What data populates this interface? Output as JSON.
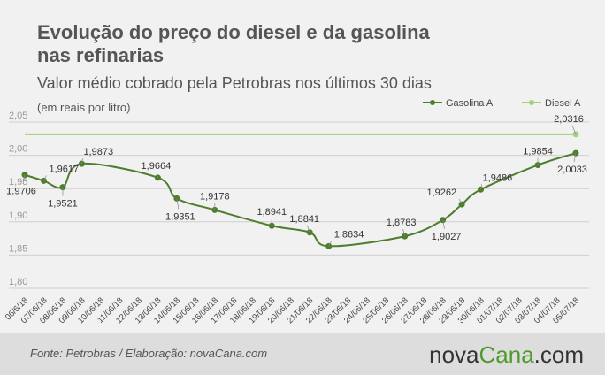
{
  "chart_data": {
    "type": "line",
    "title": [
      "Evolução do preço do diesel e da gasolina",
      "nas refinarias"
    ],
    "subtitle": "Valor médio cobrado pela Petrobras nos últimos 30 dias",
    "unit_note": "(em reais por litro)",
    "categories": [
      "06/6/18",
      "07/06/18",
      "08/06/18",
      "09/06/18",
      "10/06/18",
      "11/06/18",
      "12/06/18",
      "13/06/18",
      "14/06/18",
      "15/06/18",
      "16/06/18",
      "17/06/18",
      "18/06/18",
      "19/06/18",
      "20/06/18",
      "21/06/18",
      "22/06/18",
      "23/06/18",
      "24/06/18",
      "25/06/18",
      "26/06/18",
      "27/06/18",
      "28/06/18",
      "29/06/18",
      "30/06/18",
      "01/07/18",
      "02/07/18",
      "03/07/18",
      "04/07/18",
      "05/07/18"
    ],
    "series": [
      {
        "name": "Gasolina A",
        "color": "#4e7d2c",
        "x": [
          "06/6/18",
          "07/06/18",
          "08/06/18",
          "09/06/18",
          "13/06/18",
          "14/06/18",
          "16/06/18",
          "19/06/18",
          "21/06/18",
          "22/06/18",
          "26/06/18",
          "28/06/18",
          "29/06/18",
          "30/06/18",
          "03/07/18",
          "05/07/18"
        ],
        "values": [
          1.9706,
          1.9617,
          1.9521,
          1.9873,
          1.9664,
          1.9351,
          1.9178,
          1.8941,
          1.8841,
          1.8634,
          1.8783,
          1.9027,
          1.9262,
          1.9486,
          1.9854,
          2.0033
        ],
        "value_labels": [
          "1,9706",
          "1,9617",
          "1,9521",
          "1,9873",
          "1,9664",
          "1,9351",
          "1,9178",
          "1,8941",
          "1,8841",
          "1,8634",
          "1,8783",
          "1,9027",
          "1,9262",
          "1,9486",
          "1,9854",
          "2,0033"
        ]
      },
      {
        "name": "Diesel A",
        "color": "#9fd17f",
        "x": [
          "06/6/18",
          "05/07/18"
        ],
        "values": [
          2.0316,
          2.0316
        ],
        "value_labels": [
          null,
          "2,0316"
        ]
      }
    ],
    "ylim": [
      1.8,
      2.05
    ],
    "yticks": [
      {
        "value": 1.8,
        "label": "1,80"
      },
      {
        "value": 1.85,
        "label": "1,85"
      },
      {
        "value": 1.9,
        "label": "1,90"
      },
      {
        "value": 1.95,
        "label": "1,95"
      },
      {
        "value": 2.0,
        "label": "2,00"
      },
      {
        "value": 2.05,
        "label": "2,05"
      }
    ],
    "grid": true,
    "legend": "top-right",
    "source": "Fonte: Petrobras / Elaboração: novaCana.com",
    "logo": [
      "nova",
      "Cana",
      ".com"
    ]
  }
}
